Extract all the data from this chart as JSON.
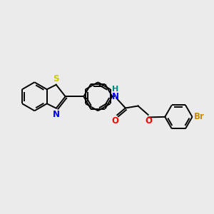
{
  "background_color": "#ebebeb",
  "atom_colors": {
    "S": "#cccc00",
    "N": "#0000ff",
    "O": "#ff0000",
    "Br": "#cc8800",
    "H": "#008888",
    "C": "#000000"
  },
  "line_color": "#000000",
  "line_width": 1.4,
  "font_size": 8.5,
  "figsize": [
    3.0,
    3.0
  ],
  "dpi": 100
}
